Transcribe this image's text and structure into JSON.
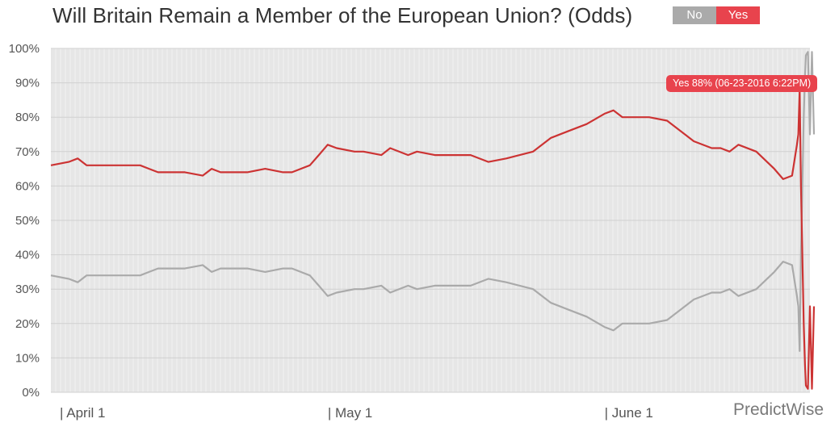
{
  "title": "Will Britain Remain a Member of the European Union? (Odds)",
  "toggles": {
    "no_label": "No",
    "yes_label": "Yes",
    "no_color": "#aaaaaa",
    "yes_color": "#e8434d"
  },
  "brand": "PredictWise",
  "tooltip": {
    "text": "Yes 88% (06-23-2016 6:22PM)",
    "color": "#e8434d"
  },
  "chart_data": {
    "type": "line",
    "title": "Will Britain Remain a Member of the European Union? (Odds)",
    "xlabel": "",
    "ylabel": "",
    "x_start": "2016-03-31",
    "x_end": "2016-06-24",
    "x_ticks": [
      {
        "label": "| April 1",
        "date": "2016-04-01"
      },
      {
        "label": "| May 1",
        "date": "2016-05-01"
      },
      {
        "label": "| June 1",
        "date": "2016-06-01"
      }
    ],
    "ylim": [
      0,
      100
    ],
    "y_ticks": [
      "0%",
      "10%",
      "20%",
      "30%",
      "40%",
      "50%",
      "60%",
      "70%",
      "80%",
      "90%",
      "100%"
    ],
    "grid": true,
    "plot_background": "#e6e6e6",
    "series": [
      {
        "name": "Yes",
        "color": "#cc3333",
        "points": [
          [
            "2016-03-31",
            66
          ],
          [
            "2016-04-02",
            67
          ],
          [
            "2016-04-03",
            68
          ],
          [
            "2016-04-04",
            66
          ],
          [
            "2016-04-07",
            66
          ],
          [
            "2016-04-10",
            66
          ],
          [
            "2016-04-11",
            65
          ],
          [
            "2016-04-12",
            64
          ],
          [
            "2016-04-15",
            64
          ],
          [
            "2016-04-17",
            63
          ],
          [
            "2016-04-18",
            65
          ],
          [
            "2016-04-19",
            64
          ],
          [
            "2016-04-22",
            64
          ],
          [
            "2016-04-24",
            65
          ],
          [
            "2016-04-26",
            64
          ],
          [
            "2016-04-27",
            64
          ],
          [
            "2016-04-29",
            66
          ],
          [
            "2016-04-30",
            69
          ],
          [
            "2016-05-01",
            72
          ],
          [
            "2016-05-02",
            71
          ],
          [
            "2016-05-04",
            70
          ],
          [
            "2016-05-05",
            70
          ],
          [
            "2016-05-07",
            69
          ],
          [
            "2016-05-08",
            71
          ],
          [
            "2016-05-10",
            69
          ],
          [
            "2016-05-11",
            70
          ],
          [
            "2016-05-13",
            69
          ],
          [
            "2016-05-15",
            69
          ],
          [
            "2016-05-17",
            69
          ],
          [
            "2016-05-19",
            67
          ],
          [
            "2016-05-21",
            68
          ],
          [
            "2016-05-24",
            70
          ],
          [
            "2016-05-26",
            74
          ],
          [
            "2016-05-28",
            76
          ],
          [
            "2016-05-30",
            78
          ],
          [
            "2016-06-01",
            81
          ],
          [
            "2016-06-02",
            82
          ],
          [
            "2016-06-03",
            80
          ],
          [
            "2016-06-06",
            80
          ],
          [
            "2016-06-08",
            79
          ],
          [
            "2016-06-10",
            75
          ],
          [
            "2016-06-11",
            73
          ],
          [
            "2016-06-13",
            71
          ],
          [
            "2016-06-14",
            71
          ],
          [
            "2016-06-15",
            70
          ],
          [
            "2016-06-16",
            72
          ],
          [
            "2016-06-18",
            70
          ],
          [
            "2016-06-20",
            65
          ],
          [
            "2016-06-21",
            62
          ],
          [
            "2016-06-22",
            63
          ],
          [
            "2016-06-23",
            72
          ],
          [
            "2016-06-23",
            75
          ],
          [
            "2016-06-23",
            88
          ],
          [
            "2016-06-23",
            60
          ],
          [
            "2016-06-23",
            40
          ],
          [
            "2016-06-23",
            20
          ],
          [
            "2016-06-23",
            8
          ],
          [
            "2016-06-24",
            2
          ],
          [
            "2016-06-24",
            1
          ],
          [
            "2016-06-24",
            25
          ],
          [
            "2016-06-24",
            1
          ],
          [
            "2016-06-24",
            25
          ]
        ]
      },
      {
        "name": "No",
        "color": "#aaaaaa",
        "points": [
          [
            "2016-03-31",
            34
          ],
          [
            "2016-04-02",
            33
          ],
          [
            "2016-04-03",
            32
          ],
          [
            "2016-04-04",
            34
          ],
          [
            "2016-04-10",
            34
          ],
          [
            "2016-04-11",
            35
          ],
          [
            "2016-04-12",
            36
          ],
          [
            "2016-04-15",
            36
          ],
          [
            "2016-04-17",
            37
          ],
          [
            "2016-04-18",
            35
          ],
          [
            "2016-04-19",
            36
          ],
          [
            "2016-04-22",
            36
          ],
          [
            "2016-04-24",
            35
          ],
          [
            "2016-04-26",
            36
          ],
          [
            "2016-04-27",
            36
          ],
          [
            "2016-04-29",
            34
          ],
          [
            "2016-04-30",
            31
          ],
          [
            "2016-05-01",
            28
          ],
          [
            "2016-05-02",
            29
          ],
          [
            "2016-05-04",
            30
          ],
          [
            "2016-05-05",
            30
          ],
          [
            "2016-05-07",
            31
          ],
          [
            "2016-05-08",
            29
          ],
          [
            "2016-05-10",
            31
          ],
          [
            "2016-05-11",
            30
          ],
          [
            "2016-05-13",
            31
          ],
          [
            "2016-05-15",
            31
          ],
          [
            "2016-05-17",
            31
          ],
          [
            "2016-05-19",
            33
          ],
          [
            "2016-05-21",
            32
          ],
          [
            "2016-05-24",
            30
          ],
          [
            "2016-05-26",
            26
          ],
          [
            "2016-05-28",
            24
          ],
          [
            "2016-05-30",
            22
          ],
          [
            "2016-06-01",
            19
          ],
          [
            "2016-06-02",
            18
          ],
          [
            "2016-06-03",
            20
          ],
          [
            "2016-06-06",
            20
          ],
          [
            "2016-06-08",
            21
          ],
          [
            "2016-06-10",
            25
          ],
          [
            "2016-06-11",
            27
          ],
          [
            "2016-06-13",
            29
          ],
          [
            "2016-06-14",
            29
          ],
          [
            "2016-06-15",
            30
          ],
          [
            "2016-06-16",
            28
          ],
          [
            "2016-06-18",
            30
          ],
          [
            "2016-06-20",
            35
          ],
          [
            "2016-06-21",
            38
          ],
          [
            "2016-06-22",
            37
          ],
          [
            "2016-06-23",
            28
          ],
          [
            "2016-06-23",
            25
          ],
          [
            "2016-06-23",
            12
          ],
          [
            "2016-06-23",
            40
          ],
          [
            "2016-06-23",
            60
          ],
          [
            "2016-06-23",
            80
          ],
          [
            "2016-06-23",
            92
          ],
          [
            "2016-06-24",
            98
          ],
          [
            "2016-06-24",
            99
          ],
          [
            "2016-06-24",
            75
          ],
          [
            "2016-06-24",
            99
          ],
          [
            "2016-06-24",
            75
          ]
        ]
      }
    ]
  }
}
